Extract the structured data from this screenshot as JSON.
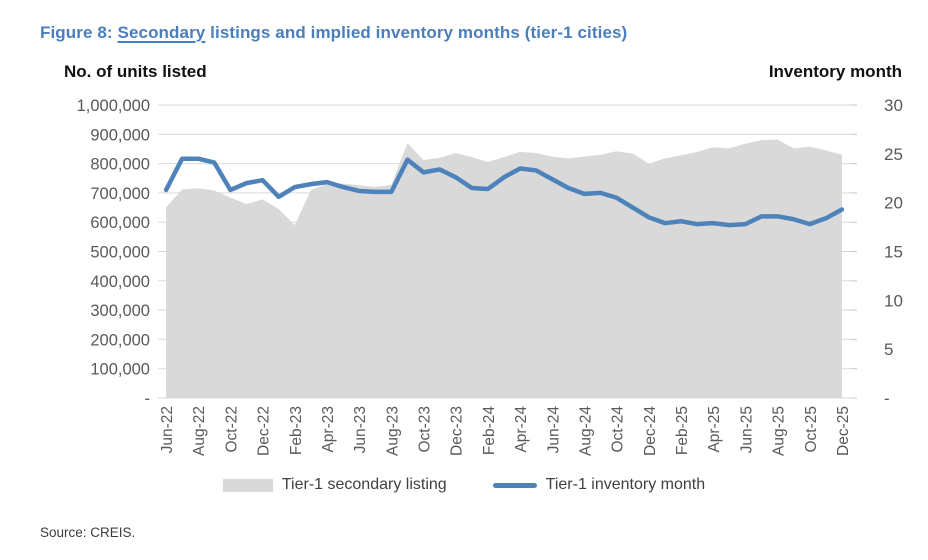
{
  "title": {
    "prefix": "Figure 8: ",
    "underlined": "Secondary",
    "rest": " listings and implied inventory months (tier-1 cities)"
  },
  "axis_headers": {
    "left": "No. of units listed",
    "right": "Inventory month"
  },
  "source": "Source: CREIS.",
  "legend": [
    {
      "label": "Tier-1 secondary listing",
      "swatch": "gray-area"
    },
    {
      "label": "Tier-1 inventory month",
      "swatch": "blue-line"
    }
  ],
  "colors": {
    "title_blue": "#4a7ebd",
    "line_blue": "#4d82ba",
    "area_gray": "#d9d9d9",
    "gridline": "#d9d9d9",
    "tick_text": "#595959"
  },
  "chart_data": {
    "type": "area",
    "subtype": "area-left-axis plus line-right-axis, monthly",
    "categories": [
      "Jun-22",
      "Jul-22",
      "Aug-22",
      "Sep-22",
      "Oct-22",
      "Nov-22",
      "Dec-22",
      "Jan-23",
      "Feb-23",
      "Mar-23",
      "Apr-23",
      "May-23",
      "Jun-23",
      "Jul-23",
      "Aug-23",
      "Sep-23",
      "Oct-23",
      "Nov-23",
      "Dec-23",
      "Jan-24",
      "Feb-24",
      "Mar-24",
      "Apr-24",
      "May-24",
      "Jun-24",
      "Jul-24",
      "Aug-24",
      "Sep-24",
      "Oct-24",
      "Nov-24",
      "Dec-24",
      "Jan-25",
      "Feb-25",
      "Mar-25",
      "Apr-25",
      "May-25",
      "Jun-25",
      "Jul-25",
      "Aug-25",
      "Sep-25",
      "Oct-25",
      "Nov-25",
      "Dec-25"
    ],
    "x_label_every": 2,
    "series": [
      {
        "name": "Tier-1 secondary listing",
        "type": "area",
        "axis": "left",
        "color": "#d9d9d9",
        "values": [
          650000,
          712000,
          716000,
          708000,
          684000,
          662000,
          678000,
          645000,
          590000,
          710000,
          730000,
          732000,
          726000,
          720000,
          728000,
          870000,
          812000,
          820000,
          836000,
          822000,
          806000,
          822000,
          840000,
          836000,
          824000,
          818000,
          824000,
          830000,
          842000,
          834000,
          800000,
          818000,
          828000,
          840000,
          856000,
          852000,
          868000,
          880000,
          882000,
          852000,
          858000,
          845000,
          830000
        ]
      },
      {
        "name": "Tier-1 inventory month",
        "type": "line",
        "axis": "right",
        "color": "#4d82ba",
        "values": [
          21.3,
          24.5,
          24.5,
          24.1,
          21.3,
          22.0,
          22.3,
          20.6,
          21.6,
          21.9,
          22.1,
          21.6,
          21.2,
          21.1,
          21.1,
          24.4,
          23.1,
          23.4,
          22.6,
          21.5,
          21.4,
          22.6,
          23.5,
          23.3,
          22.4,
          21.5,
          20.9,
          21.0,
          20.5,
          19.5,
          18.5,
          17.9,
          18.1,
          17.8,
          17.9,
          17.7,
          17.8,
          18.6,
          18.6,
          18.3,
          17.8,
          18.4,
          19.3
        ]
      }
    ],
    "left_axis": {
      "min": 0,
      "max": 1000000,
      "tick_step": 100000,
      "zero_label": "-",
      "tick_labels": [
        "1,000,000",
        "900,000",
        "800,000",
        "700,000",
        "600,000",
        "500,000",
        "400,000",
        "300,000",
        "200,000",
        "100,000",
        "-"
      ]
    },
    "right_axis": {
      "min": 0,
      "max": 30,
      "tick_step": 5,
      "zero_label": "-",
      "tick_labels": [
        "30",
        "25",
        "20",
        "15",
        "10",
        "5",
        "-"
      ]
    },
    "gridlines": true,
    "legend_position": "bottom"
  }
}
